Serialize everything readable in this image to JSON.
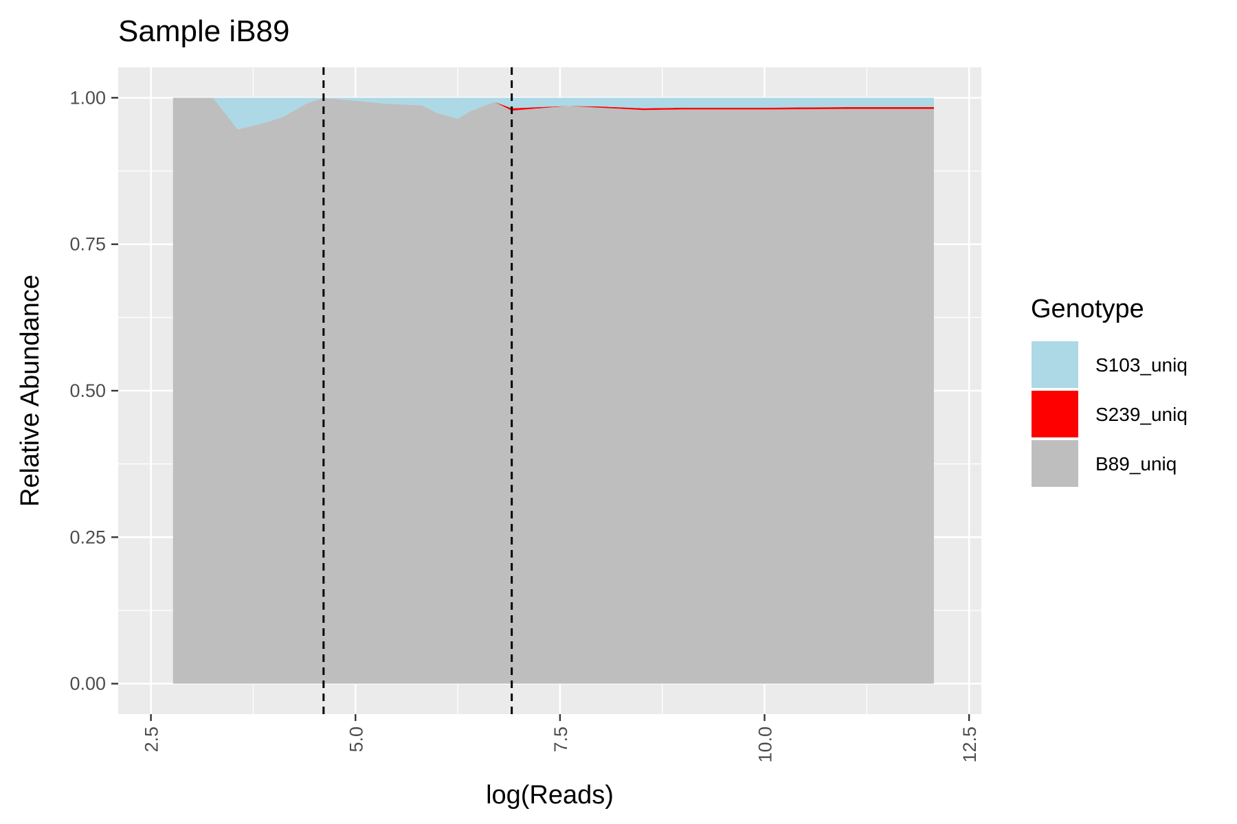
{
  "chart_data": {
    "type": "area",
    "title": "Sample iB89",
    "xlabel": "log(Reads)",
    "ylabel": "Relative Abundance",
    "xlim": [
      2.1,
      12.65
    ],
    "ylim": [
      -0.052,
      1.052
    ],
    "x_ticks": [
      2.5,
      5.0,
      7.5,
      10.0,
      12.5
    ],
    "x_tick_labels": [
      "2.5",
      "5.0",
      "7.5",
      "10.0",
      "12.5"
    ],
    "y_ticks": [
      0,
      0.25,
      0.5,
      0.75,
      1.0
    ],
    "y_tick_labels": [
      "0.00",
      "0.25",
      "0.50",
      "0.75",
      "1.00"
    ],
    "grid": true,
    "legend_position": "right",
    "legend_title": "Genotype",
    "vlines": [
      4.61,
      6.91
    ],
    "vline_style": "dashed",
    "x": [
      2.77,
      3.26,
      3.56,
      3.83,
      4.11,
      4.4,
      4.61,
      5.0,
      5.35,
      5.81,
      6.0,
      6.25,
      6.4,
      6.7,
      6.91,
      7.24,
      7.6,
      8.0,
      8.52,
      9.0,
      10.0,
      11.0,
      12.07
    ],
    "series": [
      {
        "name": "S103_uniq",
        "color": "#add8e6",
        "values": [
          0.0,
          0.0,
          0.054,
          0.045,
          0.033,
          0.01,
          0.0,
          0.005,
          0.01,
          0.013,
          0.026,
          0.036,
          0.023,
          0.007,
          0.018,
          0.016,
          0.014,
          0.015,
          0.018,
          0.017,
          0.017,
          0.016,
          0.016
        ]
      },
      {
        "name": "S239_uniq",
        "color": "#ff0000",
        "values": [
          0.0,
          0.0,
          0.0,
          0.0,
          0.0,
          0.0,
          0.0,
          0.0,
          0.0,
          0.0,
          0.0,
          0.0,
          0.0,
          0.0,
          0.004,
          0.002,
          0.0,
          0.002,
          0.003,
          0.003,
          0.003,
          0.003,
          0.003
        ]
      },
      {
        "name": "B89_uniq",
        "color": "#bebebe",
        "values": [
          1.0,
          1.0,
          0.946,
          0.955,
          0.967,
          0.99,
          1.0,
          0.995,
          0.99,
          0.987,
          0.974,
          0.964,
          0.977,
          0.993,
          0.978,
          0.982,
          0.986,
          0.983,
          0.979,
          0.98,
          0.98,
          0.981,
          0.981
        ]
      }
    ]
  }
}
